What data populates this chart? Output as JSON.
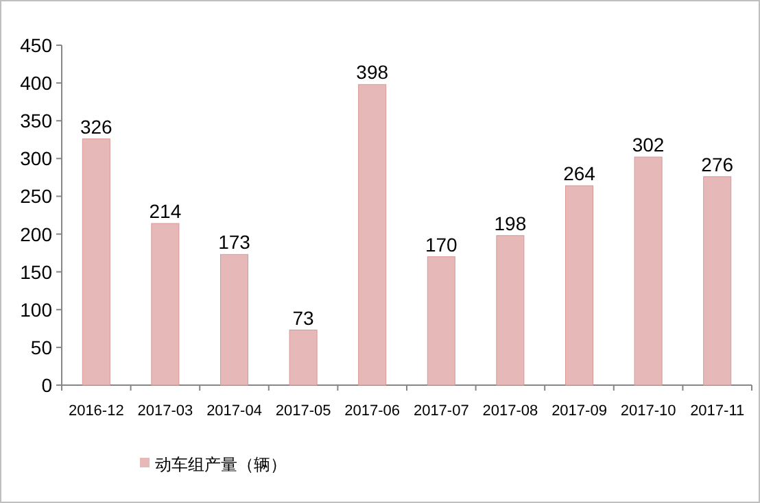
{
  "chart_data": {
    "type": "bar",
    "categories": [
      "2016-12",
      "2017-03",
      "2017-04",
      "2017-05",
      "2017-06",
      "2017-07",
      "2017-08",
      "2017-09",
      "2017-10",
      "2017-11"
    ],
    "series": [
      {
        "name": "动车组产量（辆）",
        "color": "#e6b9b8",
        "values": [
          326,
          214,
          173,
          73,
          398,
          170,
          198,
          264,
          302,
          276
        ]
      }
    ],
    "ylim": [
      0,
      450
    ],
    "yticks": [
      0,
      50,
      100,
      150,
      200,
      250,
      300,
      350,
      400,
      450
    ],
    "data_labels": true,
    "legend": "bottom",
    "grid": false
  }
}
